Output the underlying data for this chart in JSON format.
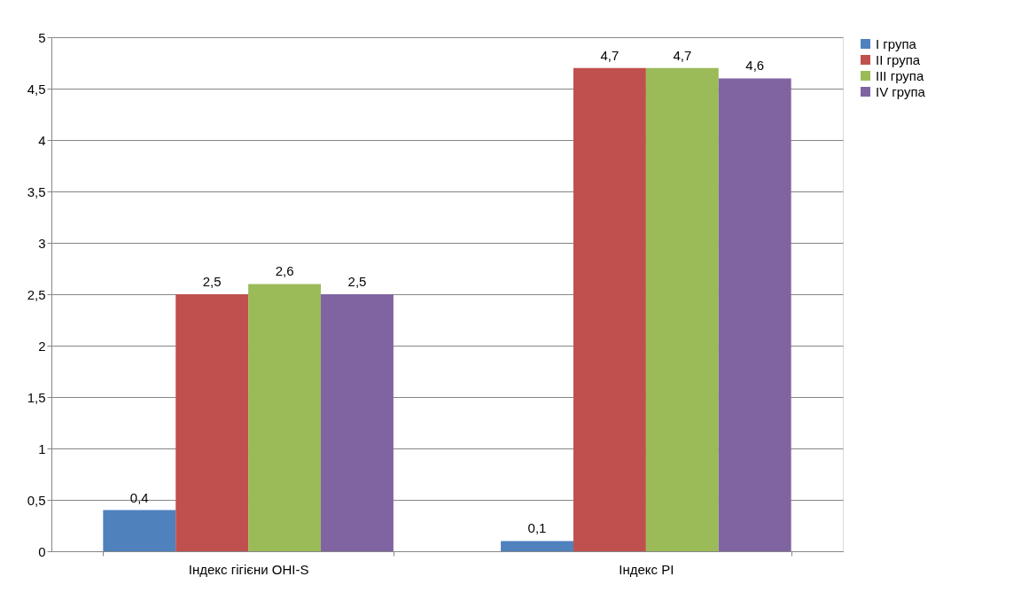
{
  "chart_data": {
    "type": "bar",
    "categories": [
      "Індекс гігієни OHI-S",
      "Індекс PI"
    ],
    "series": [
      {
        "name": "I група",
        "color": "#4f81bd",
        "values": [
          0.4,
          0.1
        ],
        "value_labels": [
          "0,4",
          "0,1"
        ]
      },
      {
        "name": "II група",
        "color": "#c0504d",
        "values": [
          2.5,
          4.7
        ],
        "value_labels": [
          "2,5",
          "4,7"
        ]
      },
      {
        "name": "III група",
        "color": "#9bbb59",
        "values": [
          2.6,
          4.7
        ],
        "value_labels": [
          "2,6",
          "4,7"
        ]
      },
      {
        "name": "IV група",
        "color": "#8064a2",
        "values": [
          2.5,
          4.6
        ],
        "value_labels": [
          "2,5",
          "4,6"
        ]
      }
    ],
    "ylim": [
      0,
      5
    ],
    "yticks": [
      0,
      {
        "value": 0.5,
        "label": "0,5"
      },
      1,
      {
        "value": 1.5,
        "label": "1,5"
      },
      2,
      {
        "value": 2.5,
        "label": "2,5"
      },
      3,
      {
        "value": 3.5,
        "label": "3,5"
      },
      4,
      {
        "value": 4.5,
        "label": "4,5"
      },
      5
    ],
    "grid": "y",
    "legend": "right"
  }
}
